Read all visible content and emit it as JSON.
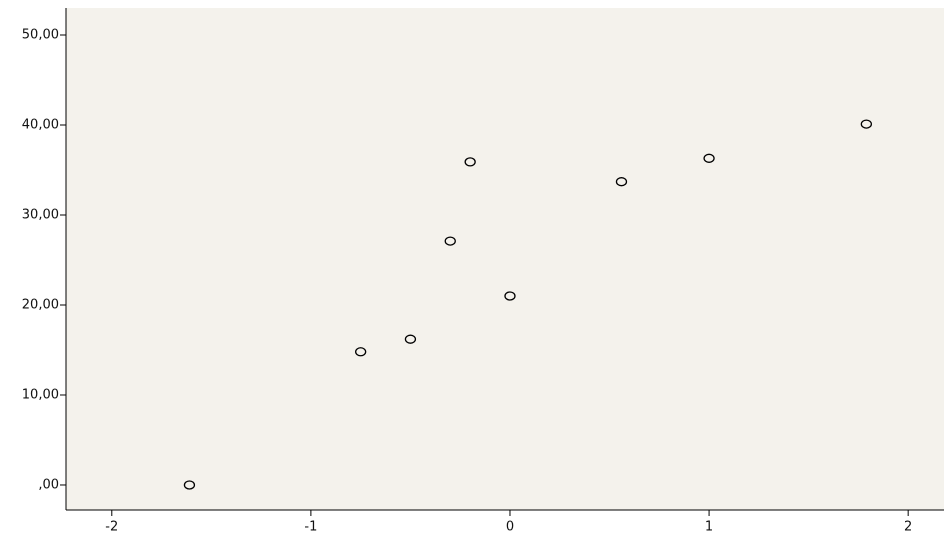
{
  "chart_data": {
    "type": "scatter",
    "x": [
      -1.61,
      -0.75,
      -0.5,
      -0.3,
      -0.2,
      0.0,
      0.56,
      1.0,
      1.79
    ],
    "values": [
      0.0,
      14.8,
      16.2,
      27.1,
      35.9,
      21.0,
      33.7,
      36.3,
      40.1
    ],
    "color": "#000000",
    "xlim": [
      -2.23,
      2.18
    ],
    "ylim": [
      -2.78,
      53.0
    ],
    "xticks": [
      -2,
      -1,
      0,
      1,
      2
    ],
    "yticks": [
      {
        "value": 0,
        "label": ",00"
      },
      {
        "value": 10,
        "label": "10,00"
      },
      {
        "value": 20,
        "label": "20,00"
      },
      {
        "value": 30,
        "label": "30,00"
      },
      {
        "value": 40,
        "label": "40,00"
      },
      {
        "value": 50,
        "label": "50,00"
      }
    ]
  }
}
